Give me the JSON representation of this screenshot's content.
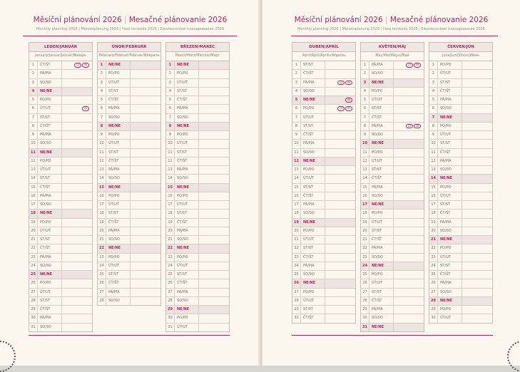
{
  "title_cz": "Měsíční plánování 2026",
  "title_sk": "Mesačné plánovanie 2026",
  "subtitle": "Monthly planning 2026 | Monatsplanung 2026 | Havi tervezés 2026 | Ежемесячное планирование 2026",
  "weekdays": [
    "PO/PO",
    "ÚT/UT",
    "ST/ST",
    "ČT/ŠT",
    "PÁ/PIA",
    "SO/SO",
    "NE/NE"
  ],
  "sunday_label": "NE/NE",
  "pages": [
    {
      "months": [
        {
          "name": "LEDEN/JANUÁR",
          "sub": "January/Januar/Január/Январь",
          "days": 31,
          "first_weekday": "ČT/ŠT",
          "holidays": {
            "1": [
              "CZ",
              "SK"
            ],
            "6": [
              "SK"
            ]
          }
        },
        {
          "name": "ÚNOR/FEBRUÁR",
          "sub": "February/Februar/Február/Февраль",
          "days": 28,
          "first_weekday": "NE/NE",
          "holidays": {}
        },
        {
          "name": "BŘEZEN/MAREC",
          "sub": "March/März/Március/Март",
          "days": 31,
          "first_weekday": "NE/NE",
          "holidays": {}
        }
      ]
    },
    {
      "months": [
        {
          "name": "DUBEN/APRÍL",
          "sub": "April/April/Április/Апрель",
          "days": 30,
          "first_weekday": "ST/ST",
          "holidays": {
            "3": [
              "CZ",
              "SK"
            ],
            "5": [
              "SK"
            ],
            "6": [
              "CZ",
              "SK"
            ]
          }
        },
        {
          "name": "KVĚTEN/MÁJ",
          "sub": "May/Mai/Május/Май",
          "days": 31,
          "first_weekday": "PÁ/PIA",
          "holidays": {
            "1": [
              "CZ",
              "SK"
            ],
            "8": [
              "CZ",
              "SK"
            ]
          }
        },
        {
          "name": "ČERVEN/JÚN",
          "sub": "June/Juni/Június/Июнь",
          "days": 30,
          "first_weekday": "PO/PO",
          "holidays": {}
        }
      ]
    }
  ]
}
